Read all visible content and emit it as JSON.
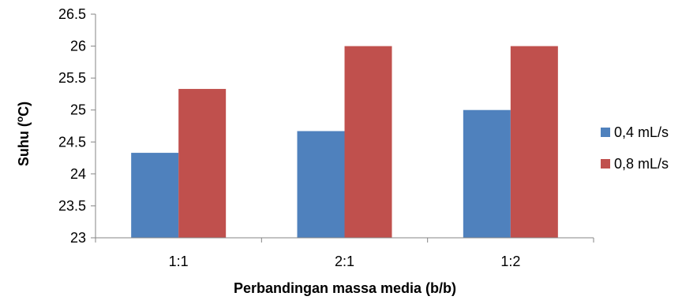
{
  "chart_data": {
    "type": "bar",
    "categories": [
      "1:1",
      "2:1",
      "1:2"
    ],
    "series": [
      {
        "name": "0,4 mL/s",
        "color": "#4f81bd",
        "values": [
          24.33,
          24.67,
          25.0
        ]
      },
      {
        "name": "0,8 mL/s",
        "color": "#c0504d",
        "values": [
          25.33,
          26.0,
          26.0
        ]
      }
    ],
    "xlabel": "Perbandingan massa media (b/b)",
    "ylabel": {
      "main": "Suhu (",
      "sup": "o",
      "tail": "C)"
    },
    "ylim": [
      23,
      26.5
    ],
    "yticks": [
      "23",
      "23.5",
      "24",
      "24.5",
      "25",
      "25.5",
      "26",
      "26.5"
    ],
    "grid": false,
    "legend": "right"
  }
}
